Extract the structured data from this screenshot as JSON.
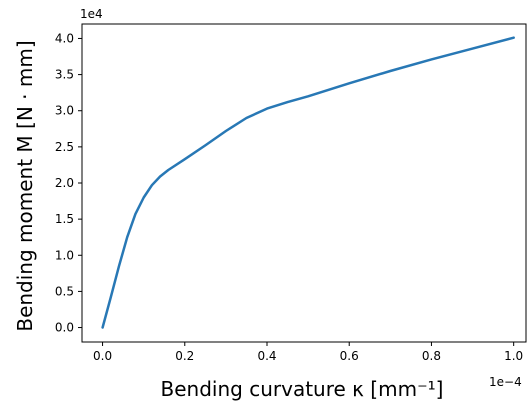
{
  "chart_data": {
    "type": "line",
    "title": "",
    "xlabel": "Bending curvature κ [mm⁻¹]",
    "ylabel": "Bending moment M [N · mm]",
    "x_offset_label": "1e−4",
    "y_offset_label": "1e4",
    "xlim": [
      -0.05,
      1.03
    ],
    "ylim": [
      -0.2,
      4.2
    ],
    "x_ticks": [
      0.0,
      0.2,
      0.4,
      0.6,
      0.8,
      1.0
    ],
    "x_tick_labels": [
      "0.0",
      "0.2",
      "0.4",
      "0.6",
      "0.8",
      "1.0"
    ],
    "y_ticks": [
      0.0,
      0.5,
      1.0,
      1.5,
      2.0,
      2.5,
      3.0,
      3.5,
      4.0
    ],
    "y_tick_labels": [
      "0.0",
      "0.5",
      "1.0",
      "1.5",
      "2.0",
      "2.5",
      "3.0",
      "3.5",
      "4.0"
    ],
    "grid": false,
    "series": [
      {
        "color": "#2878b5",
        "x": [
          0.0,
          0.02,
          0.04,
          0.06,
          0.08,
          0.1,
          0.12,
          0.14,
          0.16,
          0.2,
          0.25,
          0.3,
          0.35,
          0.4,
          0.45,
          0.5,
          0.6,
          0.7,
          0.8,
          0.9,
          1.0
        ],
        "y": [
          0.0,
          0.42,
          0.85,
          1.25,
          1.57,
          1.8,
          1.97,
          2.09,
          2.18,
          2.33,
          2.52,
          2.72,
          2.9,
          3.03,
          3.12,
          3.2,
          3.38,
          3.55,
          3.71,
          3.86,
          4.01
        ]
      }
    ]
  }
}
